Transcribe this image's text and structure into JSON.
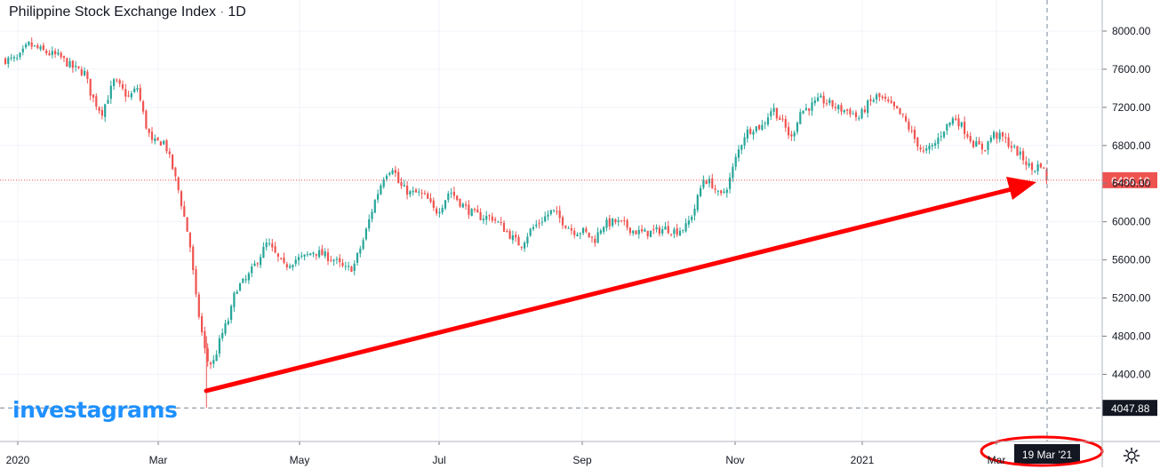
{
  "header": {
    "symbol": "Philippine Stock Exchange Index",
    "interval": "1D"
  },
  "watermark": "investagrams",
  "colors": {
    "up": "#26a69a",
    "down": "#ef5350",
    "arrow": "#ff0000",
    "price_line": "#ef5350",
    "brand": "#1e90ff",
    "grid": "#f0f3fa",
    "axis_text": "#131722"
  },
  "icons": {
    "settings": "gear-icon"
  },
  "chart_data": {
    "type": "candlestick",
    "title": "Philippine Stock Exchange Index",
    "interval": "1D",
    "x_ticks": [
      "2020",
      "Mar",
      "May",
      "Jul",
      "Sep",
      "Nov",
      "2021",
      "Mar"
    ],
    "y_ticks": [
      4400,
      4800,
      5200,
      5600,
      6000,
      6400,
      6800,
      7200,
      7600,
      8000
    ],
    "y_tick_labels": [
      "4400.00",
      "4800.00",
      "5200.00",
      "5600.00",
      "6000.00",
      "6400.00",
      "6800.00",
      "7200.00",
      "7600.00",
      "8000.00"
    ],
    "ylim": [
      4050,
      8100
    ],
    "last_price": 6436.1,
    "last_price_label": "6436.10",
    "crosshair_price": 4047.88,
    "crosshair_price_label": "4047.88",
    "crosshair_date": "19 Mar '21",
    "grid": true,
    "path": [
      [
        "2020-01-02",
        7700
      ],
      [
        "2020-01-07",
        7860
      ],
      [
        "2020-01-15",
        7780
      ],
      [
        "2020-01-22",
        7730
      ],
      [
        "2020-01-28",
        7620
      ],
      [
        "2020-02-03",
        7560
      ],
      [
        "2020-02-06",
        7330
      ],
      [
        "2020-02-11",
        7140
      ],
      [
        "2020-02-17",
        7480
      ],
      [
        "2020-02-24",
        7300
      ],
      [
        "2020-02-28",
        7410
      ],
      [
        "2020-03-03",
        7020
      ],
      [
        "2020-03-06",
        6830
      ],
      [
        "2020-03-12",
        6840
      ],
      [
        "2020-03-16",
        6550
      ],
      [
        "2020-03-19",
        6300
      ],
      [
        "2020-03-24",
        5780
      ],
      [
        "2020-03-27",
        5200
      ],
      [
        "2020-04-01",
        4550
      ],
      [
        "2020-04-04",
        4500
      ],
      [
        "2020-04-08",
        4800
      ],
      [
        "2020-04-12",
        5000
      ],
      [
        "2020-04-15",
        5300
      ],
      [
        "2020-04-20",
        5390
      ],
      [
        "2020-04-26",
        5620
      ],
      [
        "2020-04-30",
        5780
      ],
      [
        "2020-05-04",
        5650
      ],
      [
        "2020-05-08",
        5530
      ],
      [
        "2020-05-13",
        5600
      ],
      [
        "2020-05-18",
        5630
      ],
      [
        "2020-05-22",
        5690
      ],
      [
        "2020-05-27",
        5650
      ],
      [
        "2020-06-01",
        5600
      ],
      [
        "2020-06-06",
        5500
      ],
      [
        "2020-06-10",
        5520
      ],
      [
        "2020-06-15",
        5820
      ],
      [
        "2020-06-20",
        6200
      ],
      [
        "2020-06-25",
        6500
      ],
      [
        "2020-06-29",
        6580
      ],
      [
        "2020-07-02",
        6380
      ],
      [
        "2020-07-07",
        6300
      ],
      [
        "2020-07-11",
        6300
      ],
      [
        "2020-07-15",
        6250
      ],
      [
        "2020-07-19",
        6100
      ],
      [
        "2020-07-22",
        6160
      ],
      [
        "2020-07-26",
        6330
      ],
      [
        "2020-07-31",
        6200
      ],
      [
        "2020-08-05",
        6100
      ],
      [
        "2020-08-10",
        6050
      ],
      [
        "2020-08-15",
        6050
      ],
      [
        "2020-08-20",
        5950
      ],
      [
        "2020-08-25",
        5830
      ],
      [
        "2020-08-29",
        5750
      ],
      [
        "2020-09-02",
        5900
      ],
      [
        "2020-09-08",
        6020
      ],
      [
        "2020-09-13",
        6120
      ],
      [
        "2020-09-18",
        6000
      ],
      [
        "2020-09-23",
        5900
      ],
      [
        "2020-09-28",
        5900
      ],
      [
        "2020-10-03",
        5800
      ],
      [
        "2020-10-07",
        5970
      ],
      [
        "2020-10-13",
        6000
      ],
      [
        "2020-10-17",
        5970
      ],
      [
        "2020-10-22",
        5900
      ],
      [
        "2020-10-27",
        5880
      ],
      [
        "2020-11-01",
        5900
      ],
      [
        "2020-11-06",
        5930
      ],
      [
        "2020-11-11",
        5900
      ],
      [
        "2020-11-16",
        5950
      ],
      [
        "2020-11-20",
        6150
      ],
      [
        "2020-11-24",
        6450
      ],
      [
        "2020-11-28",
        6400
      ],
      [
        "2020-12-02",
        6250
      ],
      [
        "2020-12-06",
        6400
      ],
      [
        "2020-12-10",
        6700
      ],
      [
        "2020-12-14",
        6930
      ],
      [
        "2020-12-18",
        6990
      ],
      [
        "2020-12-22",
        7000
      ],
      [
        "2020-12-27",
        7200
      ],
      [
        "2021-01-01",
        7030
      ],
      [
        "2021-01-05",
        6870
      ],
      [
        "2021-01-09",
        7150
      ],
      [
        "2021-01-14",
        7210
      ],
      [
        "2021-01-19",
        7280
      ],
      [
        "2021-01-24",
        7230
      ],
      [
        "2021-01-28",
        7180
      ],
      [
        "2021-02-02",
        7160
      ],
      [
        "2021-02-06",
        7080
      ],
      [
        "2021-02-10",
        7220
      ],
      [
        "2021-02-15",
        7320
      ],
      [
        "2021-02-19",
        7260
      ],
      [
        "2021-02-24",
        7170
      ],
      [
        "2021-02-28",
        7070
      ],
      [
        "2021-03-04",
        6900
      ],
      [
        "2021-03-09",
        6720
      ],
      [
        "2021-03-14",
        6800
      ],
      [
        "2021-03-19",
        6980
      ],
      [
        "2021-03-24",
        7100
      ],
      [
        "2021-03-29",
        6950
      ],
      [
        "2021-04-02",
        6820
      ],
      [
        "2021-04-07",
        6760
      ],
      [
        "2021-04-11",
        6920
      ],
      [
        "2021-04-16",
        6880
      ],
      [
        "2021-04-21",
        6770
      ],
      [
        "2021-04-26",
        6650
      ],
      [
        "2021-04-30",
        6540
      ],
      [
        "2021-05-04",
        6610
      ],
      [
        "2021-05-07",
        6436
      ]
    ]
  }
}
